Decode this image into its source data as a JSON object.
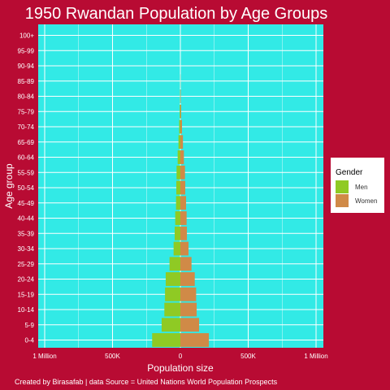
{
  "chart_data": {
    "type": "bar",
    "orientation": "horizontal",
    "title": "1950 Rwandan Population by Age Groups",
    "xlabel": "Population size",
    "ylabel": "Age group",
    "caption": "Created by Birasafab | data Source = United Nations World Population Prospects",
    "xlim": [
      -1000000,
      1000000
    ],
    "xticks": [
      {
        "value": -1000000,
        "label": "1 Million"
      },
      {
        "value": -500000,
        "label": "500K"
      },
      {
        "value": 0,
        "label": "0"
      },
      {
        "value": 500000,
        "label": "500K"
      },
      {
        "value": 1000000,
        "label": "1 Million"
      }
    ],
    "categories": [
      "0-4",
      "5-9",
      "10-14",
      "15-19",
      "20-24",
      "25-29",
      "30-34",
      "35-39",
      "40-44",
      "45-49",
      "50-54",
      "55-59",
      "60-64",
      "65-69",
      "70-74",
      "75-79",
      "80-84",
      "85-89",
      "90-94",
      "95-99",
      "100+"
    ],
    "series": [
      {
        "name": "Men",
        "color": "#8fca24",
        "values": [
          -208000,
          -138000,
          -118000,
          -113000,
          -108000,
          -80000,
          -50000,
          -42000,
          -38000,
          -32000,
          -30000,
          -28000,
          -20000,
          -14000,
          -9000,
          -5000,
          -2000,
          -500,
          -100,
          0,
          0
        ]
      },
      {
        "name": "Women",
        "color": "#d08a47",
        "values": [
          210000,
          138000,
          120000,
          116000,
          106000,
          82000,
          60000,
          48000,
          46000,
          42000,
          36000,
          34000,
          26000,
          19000,
          12000,
          6000,
          2500,
          800,
          200,
          0,
          0
        ]
      }
    ],
    "legend": {
      "title": "Gender",
      "position": "right"
    },
    "colors": {
      "background": "#b80b33",
      "panel": "#32eae6",
      "grid": "#ffffff"
    },
    "grid": true
  }
}
